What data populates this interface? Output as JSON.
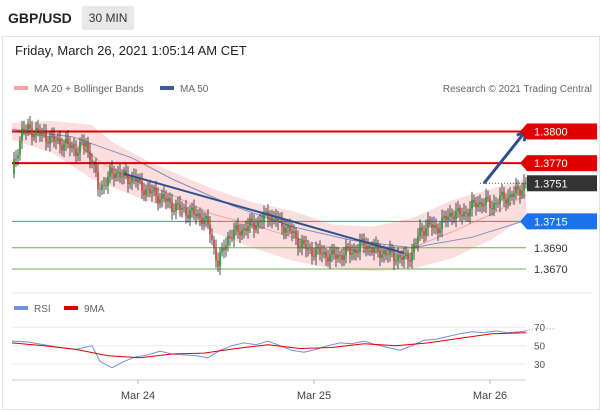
{
  "header": {
    "symbol": "GBP/USD",
    "timeframe": "30 MIN",
    "datetime": "Friday, March 26, 2021 1:05:14 AM CET"
  },
  "legend": {
    "ma_bollinger": "MA 20 + Bollinger Bands",
    "ma50": "MA 50",
    "credit": "Research © 2021 Trading Central",
    "rsi": "RSI",
    "rsi_ma": "9MA"
  },
  "colors": {
    "resistance": "#e00000",
    "support": "#4a86e8",
    "support_minor": "#6ab04c",
    "price_up": "#1e8c1e",
    "price_down": "#c0392b",
    "bollinger_fill": "#fbd3d3",
    "ma20": "#f4a3a3",
    "ma50": "#7f8fbf",
    "trend_arrow": "#2e4f8f",
    "rsi": "#6f8fe0",
    "rsi_ma": "#e00000"
  },
  "chart_data": [
    {
      "type": "candlestick",
      "x_ticks": [
        "Mar 24",
        "Mar 25",
        "Mar 26"
      ],
      "ylim": [
        1.3652,
        1.3825
      ],
      "levels": [
        {
          "value": 1.38,
          "label": "1.3800",
          "kind": "resistance"
        },
        {
          "value": 1.377,
          "label": "1.3770",
          "kind": "resistance"
        },
        {
          "value": 1.3751,
          "label": "1.3751",
          "kind": "last"
        },
        {
          "value": 1.3715,
          "label": "1.3715",
          "kind": "pivot"
        },
        {
          "value": 1.369,
          "label": "1.3690",
          "kind": "support"
        },
        {
          "value": 1.367,
          "label": "1.3670",
          "kind": "support"
        }
      ],
      "price_path": [
        [
          0,
          1.376
        ],
        [
          5,
          1.38
        ],
        [
          9,
          1.3802
        ],
        [
          14,
          1.3798
        ],
        [
          20,
          1.3792
        ],
        [
          28,
          1.3787
        ],
        [
          33,
          1.3782
        ],
        [
          37,
          1.379
        ],
        [
          38,
          1.378
        ],
        [
          40,
          1.3773
        ],
        [
          43,
          1.3747
        ],
        [
          46,
          1.375
        ],
        [
          49,
          1.3758
        ],
        [
          52,
          1.3762
        ],
        [
          55,
          1.3758
        ],
        [
          58,
          1.3755
        ],
        [
          61,
          1.3757
        ],
        [
          64,
          1.3748
        ],
        [
          68,
          1.3744
        ],
        [
          72,
          1.374
        ],
        [
          76,
          1.3736
        ],
        [
          80,
          1.373
        ],
        [
          84,
          1.3727
        ],
        [
          88,
          1.3724
        ],
        [
          92,
          1.3721
        ],
        [
          96,
          1.3718
        ],
        [
          99,
          1.3705
        ],
        [
          103,
          1.3675
        ],
        [
          105,
          1.3685
        ],
        [
          108,
          1.37
        ],
        [
          112,
          1.3705
        ],
        [
          116,
          1.3708
        ],
        [
          120,
          1.3712
        ],
        [
          124,
          1.3715
        ],
        [
          128,
          1.3722
        ],
        [
          132,
          1.3716
        ],
        [
          136,
          1.3711
        ],
        [
          140,
          1.3704
        ],
        [
          144,
          1.3694
        ],
        [
          148,
          1.3688
        ],
        [
          152,
          1.3686
        ],
        [
          156,
          1.3684
        ],
        [
          160,
          1.3682
        ],
        [
          164,
          1.3683
        ],
        [
          168,
          1.3686
        ],
        [
          172,
          1.3688
        ],
        [
          176,
          1.3694
        ],
        [
          180,
          1.3689
        ],
        [
          184,
          1.3686
        ],
        [
          188,
          1.3684
        ],
        [
          192,
          1.3682
        ],
        [
          196,
          1.3679
        ],
        [
          200,
          1.3685
        ],
        [
          204,
          1.3705
        ],
        [
          208,
          1.3712
        ],
        [
          212,
          1.3708
        ],
        [
          216,
          1.3716
        ],
        [
          220,
          1.3723
        ],
        [
          224,
          1.3721
        ],
        [
          228,
          1.3725
        ],
        [
          232,
          1.3732
        ],
        [
          236,
          1.3733
        ],
        [
          240,
          1.373
        ],
        [
          244,
          1.3736
        ],
        [
          248,
          1.3738
        ],
        [
          252,
          1.3742
        ],
        [
          257,
          1.3751
        ]
      ],
      "ma20": [
        [
          0,
          1.38
        ],
        [
          20,
          1.3795
        ],
        [
          35,
          1.3785
        ],
        [
          45,
          1.377
        ],
        [
          60,
          1.3755
        ],
        [
          80,
          1.374
        ],
        [
          100,
          1.3722
        ],
        [
          120,
          1.3712
        ],
        [
          140,
          1.37
        ],
        [
          160,
          1.369
        ],
        [
          180,
          1.3686
        ],
        [
          200,
          1.369
        ],
        [
          220,
          1.3705
        ],
        [
          240,
          1.3722
        ],
        [
          257,
          1.374
        ]
      ],
      "ma50": [
        [
          0,
          1.3802
        ],
        [
          30,
          1.3795
        ],
        [
          60,
          1.3775
        ],
        [
          80,
          1.3755
        ],
        [
          110,
          1.373
        ],
        [
          140,
          1.371
        ],
        [
          170,
          1.3697
        ],
        [
          200,
          1.369
        ],
        [
          230,
          1.37
        ],
        [
          257,
          1.3716
        ]
      ],
      "bb_upper": [
        [
          0,
          1.3808
        ],
        [
          20,
          1.381
        ],
        [
          40,
          1.3806
        ],
        [
          50,
          1.379
        ],
        [
          70,
          1.377
        ],
        [
          100,
          1.3746
        ],
        [
          120,
          1.3733
        ],
        [
          140,
          1.3725
        ],
        [
          160,
          1.3712
        ],
        [
          180,
          1.371
        ],
        [
          200,
          1.3718
        ],
        [
          220,
          1.3735
        ],
        [
          240,
          1.3746
        ],
        [
          257,
          1.3755
        ]
      ],
      "bb_lower": [
        [
          0,
          1.3792
        ],
        [
          20,
          1.378
        ],
        [
          40,
          1.3755
        ],
        [
          60,
          1.374
        ],
        [
          80,
          1.3725
        ],
        [
          100,
          1.3705
        ],
        [
          120,
          1.369
        ],
        [
          140,
          1.3678
        ],
        [
          160,
          1.367
        ],
        [
          180,
          1.3668
        ],
        [
          200,
          1.367
        ],
        [
          220,
          1.368
        ],
        [
          240,
          1.3698
        ],
        [
          257,
          1.372
        ]
      ],
      "trendline": [
        [
          56,
          1.376
        ],
        [
          196,
          1.3685
        ]
      ],
      "forecast_arrow": [
        [
          236,
          1.3751
        ],
        [
          257,
          1.38
        ]
      ]
    },
    {
      "type": "line",
      "name": "RSI panel",
      "y_ticks": [
        70,
        50,
        30
      ],
      "ylim": [
        15,
        80
      ],
      "rsi": [
        [
          0,
          55
        ],
        [
          8,
          54
        ],
        [
          16,
          51
        ],
        [
          24,
          48
        ],
        [
          32,
          46
        ],
        [
          40,
          50
        ],
        [
          44,
          33
        ],
        [
          50,
          26
        ],
        [
          56,
          33
        ],
        [
          62,
          38
        ],
        [
          68,
          40
        ],
        [
          74,
          44
        ],
        [
          80,
          41
        ],
        [
          86,
          40
        ],
        [
          92,
          39
        ],
        [
          98,
          37
        ],
        [
          104,
          45
        ],
        [
          110,
          50
        ],
        [
          116,
          53
        ],
        [
          122,
          51
        ],
        [
          128,
          55
        ],
        [
          134,
          50
        ],
        [
          140,
          45
        ],
        [
          146,
          43
        ],
        [
          152,
          46
        ],
        [
          158,
          50
        ],
        [
          164,
          53
        ],
        [
          170,
          52
        ],
        [
          176,
          55
        ],
        [
          182,
          51
        ],
        [
          188,
          48
        ],
        [
          194,
          45
        ],
        [
          200,
          50
        ],
        [
          206,
          56
        ],
        [
          212,
          57
        ],
        [
          218,
          60
        ],
        [
          224,
          63
        ],
        [
          230,
          65
        ],
        [
          236,
          64
        ],
        [
          242,
          66
        ],
        [
          248,
          64
        ],
        [
          254,
          65
        ],
        [
          257,
          66
        ],
        [
          262,
          69
        ],
        [
          272,
          68
        ]
      ],
      "rsi_ma": [
        [
          0,
          53
        ],
        [
          16,
          50
        ],
        [
          32,
          46
        ],
        [
          48,
          39
        ],
        [
          64,
          37
        ],
        [
          80,
          41
        ],
        [
          96,
          42
        ],
        [
          112,
          47
        ],
        [
          128,
          51
        ],
        [
          144,
          47
        ],
        [
          160,
          48
        ],
        [
          176,
          52
        ],
        [
          192,
          50
        ],
        [
          208,
          53
        ],
        [
          224,
          58
        ],
        [
          240,
          63
        ],
        [
          257,
          64
        ]
      ]
    }
  ]
}
